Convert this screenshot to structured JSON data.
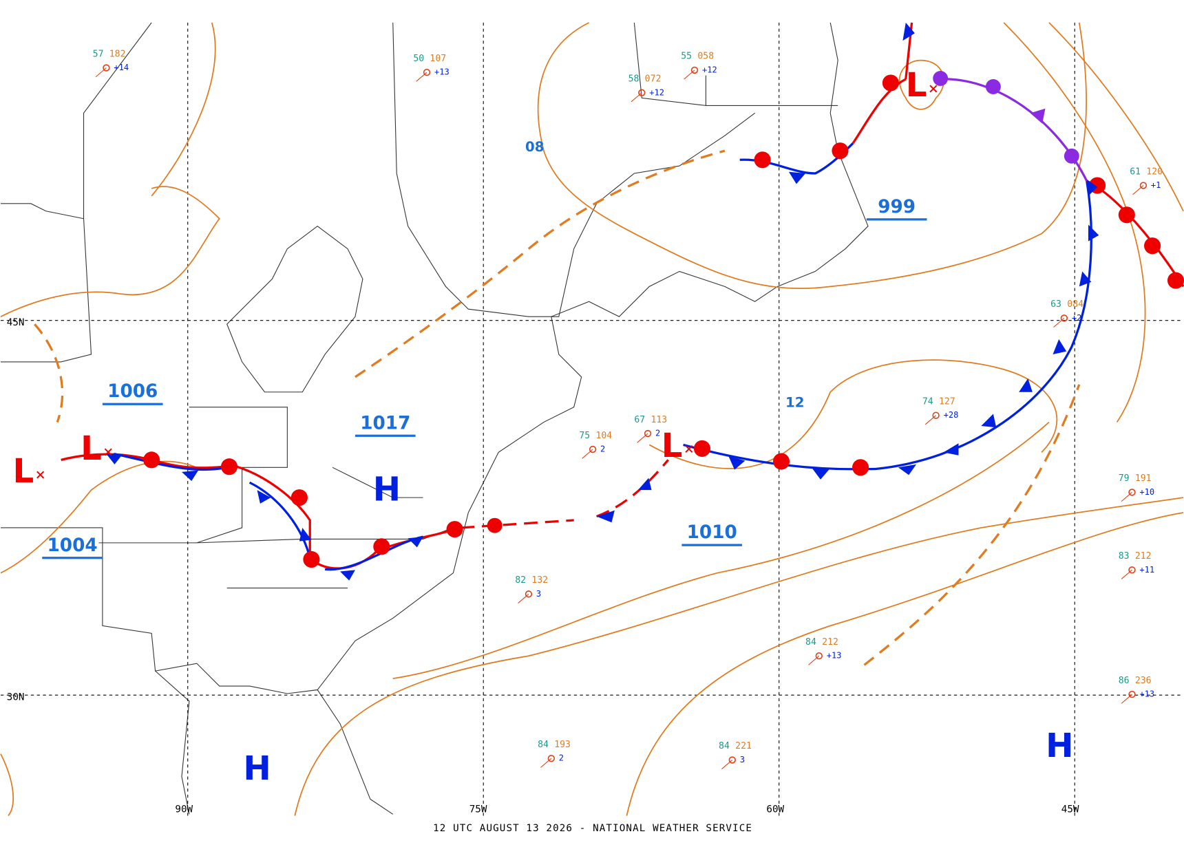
{
  "title": "12 UTC AUGUST 13 2026 - NATIONAL WEATHER SERVICE",
  "grid": {
    "lat_labels": [
      "45N",
      "30N"
    ],
    "lon_labels": [
      "90W",
      "75W",
      "60W",
      "45W"
    ]
  },
  "centers": [
    "H",
    "H",
    "H",
    "L",
    "L",
    "L",
    "L"
  ],
  "isobar_labels": [
    "1006",
    "1017",
    "1004",
    "999",
    "1010",
    "08",
    "12"
  ],
  "stations": [
    {
      "temp": "57",
      "pressure": "182",
      "tendency": "+14"
    },
    {
      "temp": "50",
      "pressure": "107",
      "tendency": "+13"
    },
    {
      "temp": "58",
      "pressure": "072",
      "tendency": "+12"
    },
    {
      "temp": "61",
      "pressure": "120",
      "tendency": "+1"
    },
    {
      "temp": "79",
      "pressure": "191",
      "tendency": "+10"
    },
    {
      "temp": "83",
      "pressure": "212",
      "tendency": "+11"
    },
    {
      "temp": "86",
      "pressure": "236",
      "tendency": "+13"
    },
    {
      "temp": "74",
      "pressure": "127",
      "tendency": "+28"
    },
    {
      "temp": "84",
      "pressure": "212",
      "tendency": "+13"
    },
    {
      "temp": "84",
      "pressure": "221",
      "tendency": "3"
    },
    {
      "temp": "84",
      "pressure": "193",
      "tendency": "2"
    },
    {
      "temp": "67",
      "pressure": "113",
      "tendency": "2"
    },
    {
      "temp": "63",
      "pressure": "084",
      "tendency": "+2"
    },
    {
      "temp": "75",
      "pressure": "104",
      "tendency": "2"
    },
    {
      "temp": "82",
      "pressure": "132",
      "tendency": "3"
    },
    {
      "temp": "55",
      "pressure": "058",
      "tendency": "+12"
    }
  ]
}
